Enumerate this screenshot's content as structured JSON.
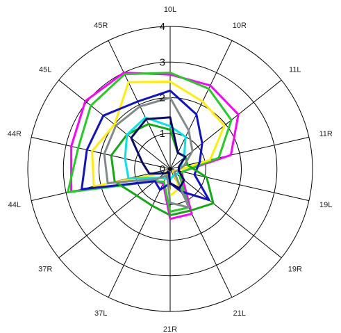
{
  "chart_data": {
    "type": "radar",
    "title": "",
    "categories": [
      "10L",
      "10R",
      "11L",
      "11R",
      "19L",
      "19R",
      "21L",
      "21R",
      "37L",
      "37R",
      "44L",
      "44R",
      "45L",
      "45R"
    ],
    "rlim": [
      0,
      4
    ],
    "rticks": [
      0,
      1,
      2,
      3,
      4
    ],
    "rtick_labels": [
      "0",
      "1",
      "2",
      "3",
      "4"
    ],
    "grid": true,
    "legend": "none",
    "series": [
      {
        "color": "#ff00ff",
        "values": [
          2.65,
          2.6,
          2.45,
          1.75,
          0.35,
          0.45,
          1.4,
          1.4,
          0.45,
          0.55,
          2.85,
          2.85,
          3.05,
          3.0
        ]
      },
      {
        "color": "#22cc22",
        "values": [
          2.7,
          2.5,
          2.2,
          1.4,
          0.35,
          0.35,
          1.2,
          1.2,
          0.4,
          0.55,
          2.95,
          2.65,
          2.85,
          2.95
        ]
      },
      {
        "color": "#ffee00",
        "values": [
          2.45,
          2.1,
          1.95,
          1.15,
          0.2,
          0.1,
          0.6,
          0.75,
          0.2,
          0.15,
          2.2,
          2.25,
          2.0,
          2.7
        ]
      },
      {
        "color": "#1111cc",
        "values": [
          2.2,
          1.7,
          1.15,
          0.85,
          0.7,
          1.4,
          0.7,
          0.4,
          0.65,
          0.55,
          2.55,
          2.4,
          2.4,
          2.1
        ]
      },
      {
        "color": "#11aa11",
        "values": [
          1.1,
          0.5,
          0.55,
          0.5,
          1.05,
          1.55,
          1.3,
          1.3,
          1.15,
          1.2,
          1.6,
          1.7,
          1.55,
          1.4
        ]
      },
      {
        "color": "#00e5e5",
        "values": [
          1.2,
          1.0,
          0.5,
          0.3,
          0.25,
          0.25,
          0.2,
          0.3,
          0.3,
          0.4,
          1.2,
          1.3,
          1.55,
          1.6
        ]
      },
      {
        "color": "#808a8a",
        "values": [
          2.0,
          1.2,
          0.8,
          0.4,
          0.2,
          0.15,
          1.2,
          0.95,
          0.2,
          0.45,
          1.8,
          1.9,
          1.95,
          1.95
        ]
      },
      {
        "color": "#0a0a66",
        "values": [
          1.45,
          0.5,
          0.55,
          0.25,
          0.25,
          0.5,
          0.6,
          0.4,
          0.1,
          0.2,
          0.6,
          0.8,
          1.4,
          1.55
        ]
      }
    ]
  }
}
